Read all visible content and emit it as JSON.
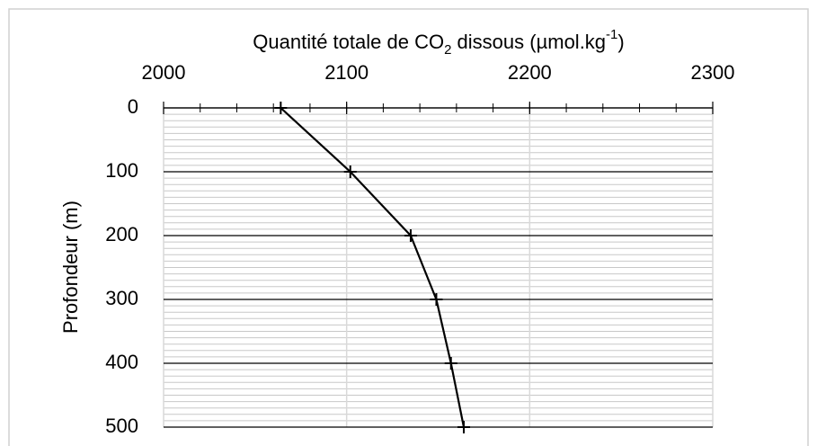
{
  "chart_data": {
    "type": "line",
    "xlabel": [
      "Quantité totale de CO",
      "2",
      " dissous (µmol.kg",
      "-1",
      ")"
    ],
    "ylabel": "Profondeur (m)",
    "x": [
      2064,
      2102,
      2135,
      2149,
      2157,
      2164
    ],
    "y": [
      0,
      100,
      200,
      300,
      400,
      500
    ],
    "color": "#000000",
    "marker": "plus",
    "xlim": [
      2000,
      2300
    ],
    "xticks": [
      2000,
      2100,
      2200,
      2300
    ],
    "x_minor_step": 20,
    "xaxis_position": "top",
    "ylim": [
      0,
      500
    ],
    "yticks": [
      0,
      100,
      200,
      300,
      400,
      500
    ],
    "y_minor_step": 10,
    "y_inverted": true,
    "grid": true
  }
}
